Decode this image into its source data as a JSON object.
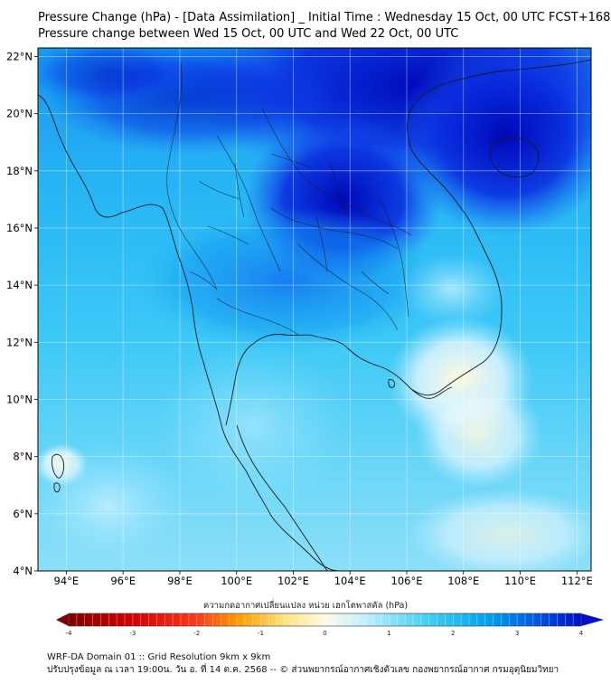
{
  "title": "Pressure Change (hPa) - [Data Assimilation] _ Initial Time : Wednesday 15 Oct, 00 UTC FCST+168",
  "subtitle": "Pressure change between Wed 15 Oct, 00 UTC and Wed 22 Oct, 00 UTC",
  "map": {
    "lon_range": [
      93,
      112.5
    ],
    "lat_range": [
      4,
      22.3
    ],
    "lon_ticks": [
      "94°E",
      "96°E",
      "98°E",
      "100°E",
      "102°E",
      "104°E",
      "106°E",
      "108°E",
      "110°E",
      "112°E"
    ],
    "lat_ticks": [
      "22°N",
      "20°N",
      "18°N",
      "16°N",
      "14°N",
      "12°N",
      "10°N",
      "8°N",
      "6°N",
      "4°N"
    ],
    "grid": true
  },
  "colorbar": {
    "label": "ความกดอากาศเปลี่ยนแปลง หน่วย เฮกโตพาสคัล (hPa)",
    "min": -4,
    "max": 4,
    "ticks": [
      "-4",
      "-3",
      "-2",
      "-1",
      "0",
      "1",
      "2",
      "3",
      "4"
    ],
    "colors": {
      "neg4": "#7f0000",
      "neg3": "#e01010",
      "neg2": "#ff9a00",
      "neg1": "#ffe27a",
      "zero": "#fffbe6",
      "pos1": "#bfeeff",
      "pos2": "#40d0f5",
      "pos3": "#00a0f0",
      "pos4": "#0010c8"
    }
  },
  "footer": {
    "line1": "WRF-DA Domain 01 :: Grid Resolution 9km x 9km",
    "line2": "ปรับปรุงข้อมูล ณ เวลา 19:00น. วัน อ. ที่ 14 ต.ค. 2568 -- © ส่วนพยากรณ์อากาศเชิงตัวเลข กองพยากรณ์อากาศ กรมอุตุนิยมวิทยา"
  }
}
